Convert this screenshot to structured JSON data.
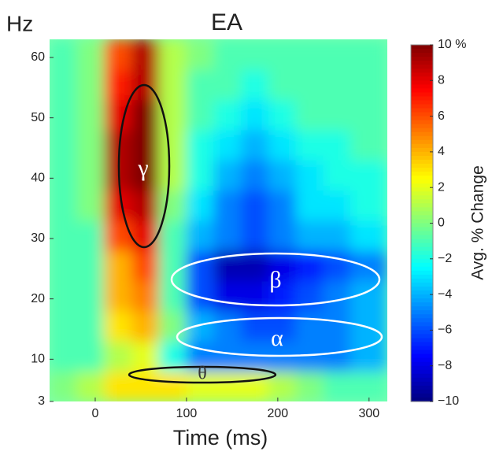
{
  "chart_data": {
    "type": "heatmap",
    "title": "EA",
    "y_label": "Hz",
    "x_label": "Time (ms)",
    "colorbar_label": "Avg. % Change",
    "x_edges": [
      -50,
      -20,
      10,
      40,
      70,
      100,
      130,
      160,
      190,
      220,
      250,
      280,
      320
    ],
    "y_edges": [
      3,
      8,
      13,
      18,
      23,
      28,
      33,
      38,
      43,
      48,
      53,
      58,
      63
    ],
    "z": [
      [
        0,
        1,
        3,
        3,
        3,
        2,
        2,
        2,
        1,
        0,
        -1,
        -1
      ],
      [
        -1,
        -1,
        1,
        2,
        -2,
        -5,
        -5,
        -5,
        -5,
        -5,
        -5,
        -4
      ],
      [
        -1,
        -1,
        3,
        4,
        0,
        -4,
        -5,
        -6,
        -6,
        -5,
        -5,
        -4
      ],
      [
        -1,
        -1,
        4,
        5,
        -1,
        -6,
        -8,
        -8,
        -7,
        -6,
        -5,
        -4
      ],
      [
        -1,
        -1,
        4,
        6,
        -1,
        -6,
        -9,
        -9,
        -8,
        -7,
        -6,
        -5
      ],
      [
        -1,
        -1,
        6,
        8,
        -1,
        -4,
        -5,
        -6,
        -5,
        -4,
        -4,
        -3
      ],
      [
        -1,
        0,
        8,
        9,
        0,
        -3,
        -5,
        -6,
        -5,
        -3,
        -3,
        -2
      ],
      [
        -1,
        0,
        9,
        10,
        1,
        -2,
        -4,
        -5,
        -4,
        -3,
        -2,
        -2
      ],
      [
        -1,
        0,
        9,
        10,
        1,
        -2,
        -3,
        -4,
        -3,
        -2,
        -2,
        -1
      ],
      [
        -1,
        0,
        8,
        10,
        1,
        -1,
        -2,
        -3,
        -2,
        -1,
        -1,
        -1
      ],
      [
        -1,
        0,
        7,
        9,
        1,
        -1,
        -1,
        -2,
        -1,
        -1,
        -1,
        -1
      ],
      [
        -1,
        0,
        6,
        9,
        1,
        0,
        -1,
        -1,
        -1,
        -1,
        -1,
        -1
      ]
    ],
    "colormap": "jet",
    "xlim": [
      -50,
      320
    ],
    "ylim": [
      3,
      63
    ],
    "zlim": [
      -10,
      10
    ],
    "xticks": [
      0,
      100,
      200,
      300
    ],
    "yticks": [
      3,
      10,
      20,
      30,
      40,
      50,
      60
    ],
    "zticks": [
      {
        "value": 10,
        "label": "10 %"
      },
      8,
      6,
      4,
      2,
      0,
      {
        "value": -2,
        "label": "−2"
      },
      {
        "value": -4,
        "label": "−4"
      },
      {
        "value": -6,
        "label": "−6"
      },
      {
        "value": -8,
        "label": "−8"
      },
      {
        "value": -10,
        "label": "−10"
      }
    ],
    "annotations": [
      "γ",
      "β",
      "α",
      "θ"
    ]
  }
}
